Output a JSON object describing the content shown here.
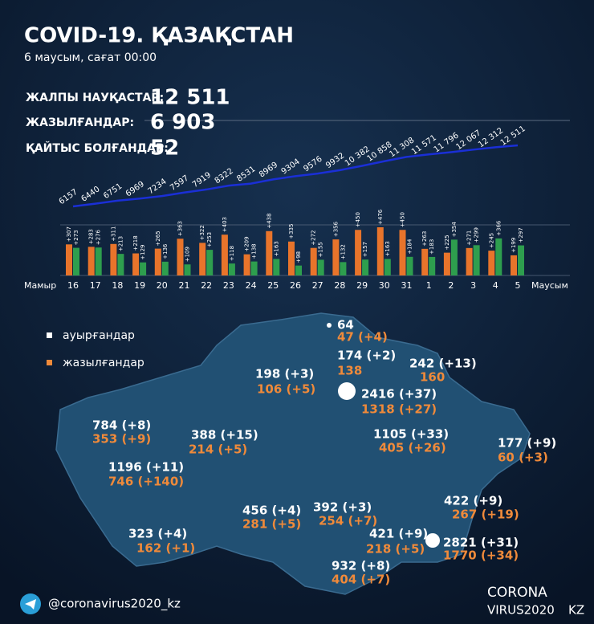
{
  "header": {
    "title": "COVID-19. ҚАЗАҚСТАН",
    "subtitle": "6 маусым, сағат 00:00"
  },
  "stats": [
    {
      "label": "ЖАЛПЫ НАУҚАСТАР:",
      "value": "12 511"
    },
    {
      "label": "ЖАЗЫЛҒАНДАР:",
      "value": "6 903"
    },
    {
      "label": "ҚАЙТЫС БОЛҒАНДАР:",
      "value": "52"
    }
  ],
  "chart_data": {
    "type": "bar",
    "categories": [
      "16",
      "17",
      "18",
      "19",
      "20",
      "21",
      "22",
      "23",
      "24",
      "25",
      "26",
      "27",
      "28",
      "29",
      "30",
      "31",
      "1",
      "2",
      "3",
      "4",
      "5"
    ],
    "x_start_label": "Мамыр",
    "x_end_label": "Маусым",
    "series": [
      {
        "color": "#e8742b",
        "values": [
          307,
          283,
          311,
          218,
          265,
          363,
          322,
          403,
          209,
          438,
          335,
          272,
          356,
          450,
          476,
          450,
          263,
          225,
          271,
          245,
          199
        ],
        "value_labels": [
          "+307",
          "+283",
          "+311",
          "+218",
          "+265",
          "+363",
          "+322",
          "+403",
          "+209",
          "+438",
          "+335",
          "+272",
          "+356",
          "+450",
          "+476",
          "+450",
          "+263",
          "+225",
          "+271",
          "+245",
          "+199"
        ]
      },
      {
        "color": "#2e9e4e",
        "values": [
          273,
          276,
          213,
          129,
          136,
          109,
          253,
          118,
          138,
          163,
          98,
          155,
          132,
          157,
          163,
          184,
          183,
          354,
          299,
          366,
          297
        ],
        "value_labels": [
          "+273",
          "+276",
          "+213",
          "+129",
          "+136",
          "+109",
          "+253",
          "+118",
          "+138",
          "+163",
          "+98",
          "+155",
          "+132",
          "+157",
          "+163",
          "+184",
          "+183",
          "+354",
          "+299",
          "+366",
          "+297"
        ]
      }
    ],
    "line": {
      "type": "line",
      "color": "#1a2fd6",
      "values": [
        6157,
        6440,
        6751,
        6969,
        7234,
        7597,
        7919,
        8322,
        8531,
        8969,
        9304,
        9576,
        9932,
        10382,
        10858,
        11308,
        11571,
        11796,
        12067,
        12312,
        12511
      ],
      "value_labels": [
        "6157",
        "6440",
        "6751",
        "6969",
        "7234",
        "7597",
        "7919",
        "8322",
        "8531",
        "8969",
        "9304",
        "9576",
        "9932",
        "10 382",
        "10 858",
        "11 308",
        "11 571",
        "11 796",
        "12 067",
        "12 312",
        "12 511"
      ]
    }
  },
  "map": {
    "legend": [
      "ауырғандар",
      "жазылғандар"
    ],
    "regions": [
      {
        "cases": "64",
        "recovered": "47 (+4)"
      },
      {
        "cases": "174 (+2)",
        "recovered": "138"
      },
      {
        "cases": "242 (+13)",
        "recovered": "160"
      },
      {
        "cases": "198 (+3)",
        "recovered": "106 (+5)"
      },
      {
        "cases": "2416 (+37)",
        "recovered": "1318 (+27)"
      },
      {
        "cases": "784 (+8)",
        "recovered": "353 (+9)"
      },
      {
        "cases": "388 (+15)",
        "recovered": "214 (+5)"
      },
      {
        "cases": "1105 (+33)",
        "recovered": "405 (+26)"
      },
      {
        "cases": "177 (+9)",
        "recovered": "60 (+3)"
      },
      {
        "cases": "1196 (+11)",
        "recovered": "746 (+140)"
      },
      {
        "cases": "456 (+4)",
        "recovered": "281 (+5)"
      },
      {
        "cases": "392 (+3)",
        "recovered": "254 (+7)"
      },
      {
        "cases": "422 (+9)",
        "recovered": "267 (+19)"
      },
      {
        "cases": "323 (+4)",
        "recovered": "162 (+1)"
      },
      {
        "cases": "421 (+9)",
        "recovered": "218 (+5)"
      },
      {
        "cases": "2821 (+31)",
        "recovered": "1770 (+34)"
      },
      {
        "cases": "932 (+8)",
        "recovered": "404 (+7)"
      }
    ]
  },
  "footer": {
    "handle": "@coronavirus2020_kz",
    "logo_top": "CORONA",
    "logo_bottom": "VIRUS2020",
    "logo_suffix": "KZ"
  }
}
